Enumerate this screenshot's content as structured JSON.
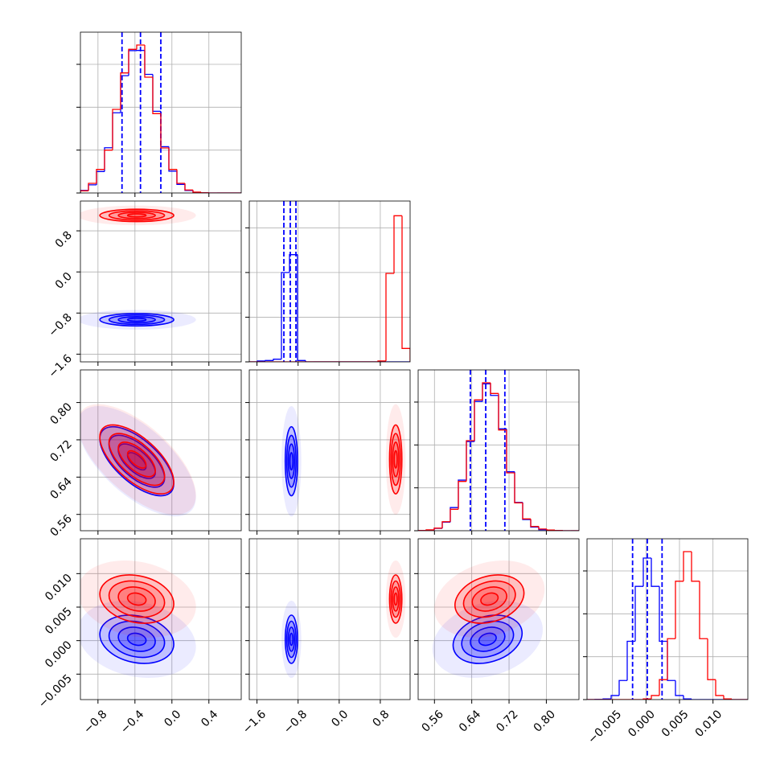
{
  "chart_data": {
    "type": "corner",
    "grid": true,
    "contour_sigmas": [
      0.5,
      1,
      1.5,
      2
    ],
    "parameters": [
      {
        "lim": [
          -0.99,
          0.75
        ],
        "ticks": [
          {
            "value": -0.8,
            "label": "−0.8"
          },
          {
            "value": -0.4,
            "label": "−0.4"
          },
          {
            "value": 0,
            "label": "0.0"
          },
          0.4
        ],
        "bins": [
          -0.99,
          -0.903,
          -0.816,
          -0.729,
          -0.642,
          -0.555,
          -0.468,
          -0.381,
          -0.294,
          -0.207,
          -0.12,
          -0.033,
          0.054,
          0.141,
          0.228,
          0.315,
          0.402,
          0.489,
          0.576,
          0.663,
          0.75
        ],
        "hist_ylim": [
          0,
          750
        ],
        "hist_yticks": [
          0,
          200,
          400,
          600
        ]
      },
      {
        "lim": [
          -1.75,
          1.38
        ],
        "ticks": [
          {
            "value": -1.6,
            "label": "−1.6"
          },
          {
            "value": -0.8,
            "label": "−0.8"
          },
          {
            "value": 0,
            "label": "0.0"
          },
          0.8
        ],
        "bins": [
          -1.75,
          -1.5935,
          -1.437,
          -1.2805,
          -1.124,
          -0.9675,
          -0.811,
          -0.6545,
          -0.498,
          -0.3415,
          -0.185,
          -0.0285,
          0.128,
          0.2845,
          0.441,
          0.5975,
          0.754,
          0.9105,
          1.067,
          1.2235,
          1.38
        ],
        "hist_ylim": [
          0,
          3600
        ],
        "hist_yticks": [
          0,
          1000,
          2000,
          3000
        ]
      },
      {
        "lim": [
          0.525,
          0.87
        ],
        "ticks": [
          0.56,
          0.64,
          0.72,
          {
            "value": 0.8,
            "label": "0.80"
          }
        ],
        "bins": [
          0.525,
          0.54225,
          0.5595,
          0.57675,
          0.594,
          0.61125,
          0.6285,
          0.64575,
          0.663,
          0.68025,
          0.6975,
          0.71475,
          0.732,
          0.74925,
          0.7665,
          0.78375,
          0.801,
          0.81825,
          0.8355,
          0.85275,
          0.87
        ],
        "hist_ylim": [
          0,
          750
        ],
        "hist_yticks": [
          0,
          200,
          400,
          600
        ]
      },
      {
        "lim": [
          -0.0088,
          0.0152
        ],
        "ticks": [
          {
            "value": -0.005,
            "label": "−0.005"
          },
          {
            "value": 0,
            "label": "0.000"
          },
          0.005,
          {
            "value": 0.01,
            "label": "0.010"
          }
        ],
        "bins": [
          -0.0088,
          -0.0076,
          -0.0064,
          -0.0052,
          -0.004,
          -0.0028,
          -0.0016,
          -0.0004,
          0.0008,
          0.002,
          0.0032,
          0.0044,
          0.0056,
          0.0068,
          0.008,
          0.0092,
          0.0104,
          0.0116,
          0.0128,
          0.014,
          0.0152
        ],
        "hist_ylim": [
          0,
          750
        ],
        "hist_yticks": [
          0,
          200,
          400,
          600
        ]
      }
    ],
    "series": [
      {
        "color": "#0000ff",
        "mean": [
          -0.38,
          -0.93,
          0.674,
          0.0002
        ],
        "std": [
          0.2,
          0.06,
          0.037,
          0.0018
        ],
        "corr": [
          [],
          [
            0
          ],
          [
            -0.65,
            0
          ],
          [
            -0.2,
            0,
            0.25
          ]
        ],
        "quantiles": [
          [
            -0.54,
            -0.34,
            -0.12
          ],
          [
            -1.077,
            -0.952,
            -0.842
          ],
          [
            0.637,
            0.67,
            0.711
          ],
          [
            -0.002,
            0.0002,
            0.0024
          ]
        ],
        "counts": [
          [
            12,
            38,
            100,
            211,
            374,
            547,
            664,
            665,
            553,
            381,
            216,
            102,
            40,
            12,
            3,
            1,
            0,
            0,
            0,
            0
          ],
          [
            0,
            20,
            30,
            60,
            2000,
            2400,
            30,
            0,
            0,
            0,
            0,
            0,
            0,
            0,
            0,
            0,
            0,
            0,
            0,
            0
          ],
          [
            1,
            3,
            11,
            40,
            108,
            236,
            416,
            603,
            685,
            631,
            475,
            275,
            132,
            52,
            17,
            5,
            2,
            1,
            0,
            0
          ],
          [
            0,
            1,
            3,
            19,
            89,
            272,
            528,
            660,
            528,
            272,
            89,
            19,
            3,
            0,
            0,
            0,
            0,
            0,
            0,
            0
          ]
        ]
      },
      {
        "color": "#ff0000",
        "mean": [
          -0.38,
          1.1,
          0.678,
          0.0062
        ],
        "std": [
          0.2,
          0.06,
          0.037,
          0.0018
        ],
        "corr": [
          [],
          [
            0
          ],
          [
            -0.65,
            0
          ],
          [
            -0.2,
            0,
            0.25
          ]
        ],
        "counts": [
          [
            10,
            45,
            110,
            200,
            390,
            560,
            670,
            690,
            540,
            370,
            210,
            110,
            45,
            14,
            4,
            1,
            0,
            0,
            0,
            0
          ],
          [
            0,
            0,
            0,
            0,
            0,
            0,
            0,
            0,
            0,
            0,
            0,
            0,
            0,
            0,
            0,
            0,
            20,
            1980,
            3270,
            300
          ],
          [
            1,
            4,
            12,
            42,
            100,
            230,
            420,
            610,
            690,
            640,
            470,
            270,
            130,
            55,
            20,
            8,
            3,
            1,
            0,
            0
          ],
          [
            0,
            0,
            0,
            0,
            0,
            0,
            0,
            3,
            19,
            93,
            284,
            552,
            690,
            552,
            284,
            93,
            19,
            3,
            0,
            0
          ]
        ]
      }
    ]
  }
}
